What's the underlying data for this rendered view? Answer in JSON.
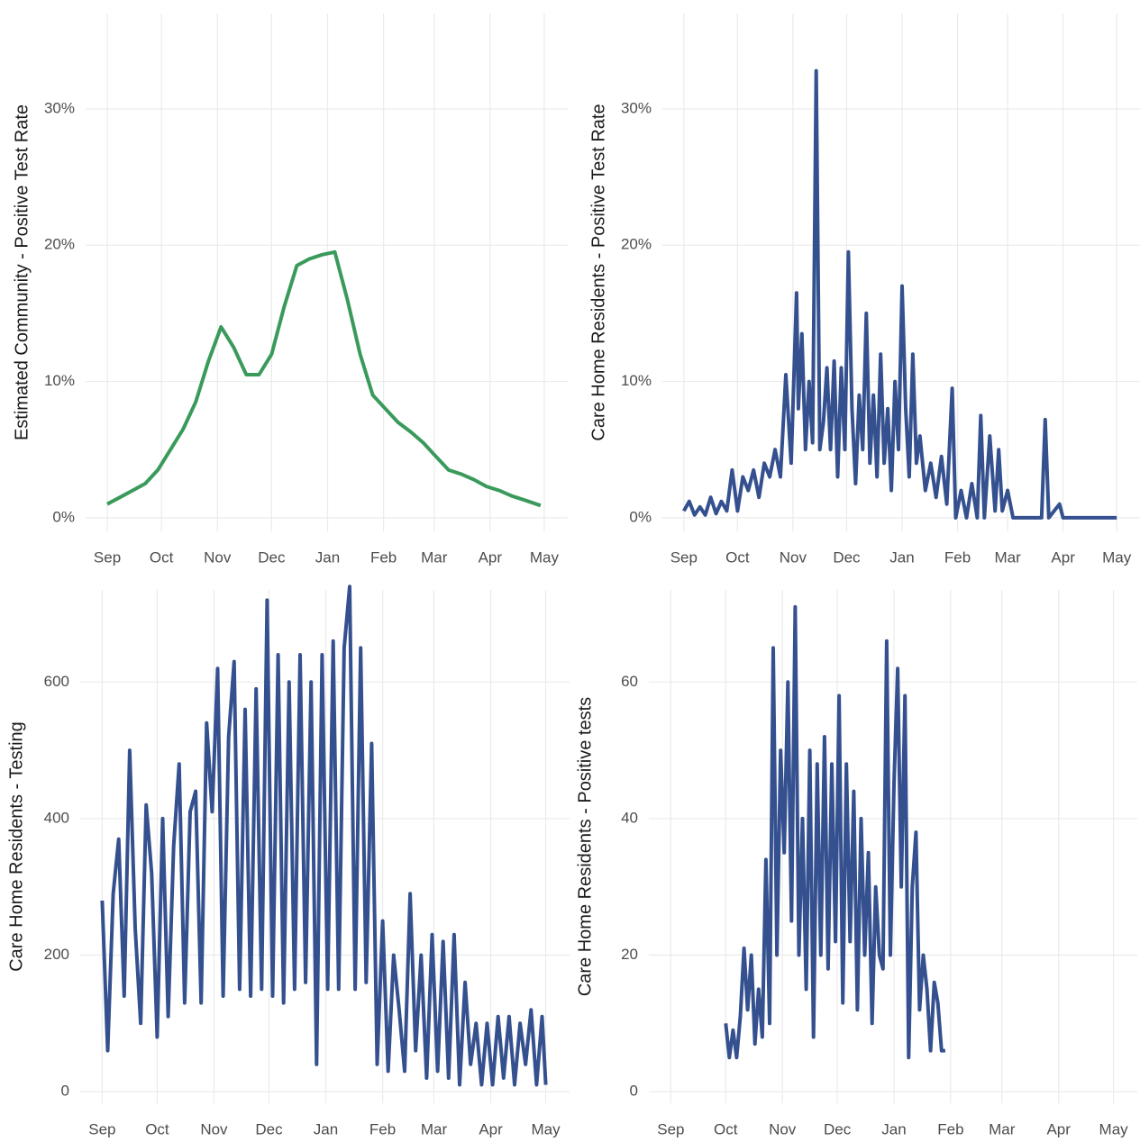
{
  "chart_data": [
    {
      "type": "line",
      "ylabel": "Estimated Community - Positive Test Rate",
      "color": "#3a9a5b",
      "x": [
        0,
        7,
        14,
        21,
        28,
        35,
        42,
        49,
        56,
        63,
        70,
        77,
        84,
        91,
        98,
        105,
        112,
        119,
        126,
        133,
        140,
        147,
        154,
        161,
        168,
        175,
        182,
        189,
        196,
        203,
        210,
        217,
        224,
        231,
        240
      ],
      "values": [
        1,
        1.5,
        2,
        2.5,
        3.5,
        5,
        6.5,
        8.5,
        11.5,
        14,
        12.5,
        10.5,
        10.5,
        12,
        15.5,
        18.5,
        19,
        19.3,
        19.5,
        16,
        12,
        9,
        8,
        7,
        6.3,
        5.5,
        4.5,
        3.5,
        3.2,
        2.8,
        2.3,
        2,
        1.6,
        1.3,
        0.9
      ],
      "xlim": [
        -12,
        255
      ],
      "xticks": [
        {
          "value": 0,
          "label": "Sep"
        },
        {
          "value": 30,
          "label": "Oct"
        },
        {
          "value": 61,
          "label": "Nov"
        },
        {
          "value": 91,
          "label": "Dec"
        },
        {
          "value": 122,
          "label": "Jan"
        },
        {
          "value": 153,
          "label": "Feb"
        },
        {
          "value": 181,
          "label": "Mar"
        },
        {
          "value": 212,
          "label": "Apr"
        },
        {
          "value": 242,
          "label": "May"
        }
      ],
      "ylim": [
        -1,
        37
      ],
      "yticks": [
        {
          "value": 0,
          "label": "0%"
        },
        {
          "value": 10,
          "label": "10%"
        },
        {
          "value": 20,
          "label": "20%"
        },
        {
          "value": 30,
          "label": "30%"
        }
      ],
      "grid": true
    },
    {
      "type": "line",
      "ylabel": "Care Home Residents - Positive Test Rate",
      "color": "#34508f",
      "x": [
        0,
        3,
        6,
        9,
        12,
        15,
        18,
        21,
        24,
        27,
        30,
        33,
        36,
        39,
        42,
        45,
        48,
        51,
        54,
        57,
        60,
        63,
        64,
        66,
        68,
        70,
        72,
        74,
        76,
        78,
        80,
        82,
        84,
        86,
        88,
        90,
        92,
        94,
        96,
        98,
        100,
        102,
        104,
        106,
        108,
        110,
        112,
        114,
        116,
        118,
        120,
        122,
        124,
        126,
        128,
        130,
        132,
        135,
        138,
        141,
        144,
        147,
        150,
        152,
        155,
        158,
        161,
        164,
        166,
        168,
        171,
        174,
        176,
        178,
        181,
        184,
        190,
        200,
        202,
        204,
        210,
        212,
        220,
        242
      ],
      "values": [
        0.5,
        1.2,
        0.2,
        0.8,
        0.2,
        1.5,
        0.3,
        1.2,
        0.5,
        3.5,
        0.5,
        3,
        2,
        3.5,
        1.5,
        4,
        3,
        5,
        3,
        10.5,
        4,
        16.5,
        8,
        13.5,
        5,
        10,
        5.5,
        32.8,
        5,
        7,
        11,
        5,
        11.5,
        3,
        11,
        5,
        19.5,
        8,
        2.5,
        9,
        5,
        15,
        4,
        9,
        3,
        12,
        4,
        8,
        2,
        10,
        5,
        17,
        8,
        3,
        12,
        4,
        6,
        2,
        4,
        1.5,
        4.5,
        1,
        9.5,
        0,
        2,
        0,
        2.5,
        0,
        7.5,
        0,
        6,
        0.5,
        5,
        0.5,
        2,
        0,
        0,
        0,
        7.2,
        0,
        1,
        0,
        0,
        0
      ],
      "xlim": [
        -12,
        255
      ],
      "xticks": [
        {
          "value": 0,
          "label": "Sep"
        },
        {
          "value": 30,
          "label": "Oct"
        },
        {
          "value": 61,
          "label": "Nov"
        },
        {
          "value": 91,
          "label": "Dec"
        },
        {
          "value": 122,
          "label": "Jan"
        },
        {
          "value": 153,
          "label": "Feb"
        },
        {
          "value": 181,
          "label": "Mar"
        },
        {
          "value": 212,
          "label": "Apr"
        },
        {
          "value": 242,
          "label": "May"
        }
      ],
      "ylim": [
        -1,
        37
      ],
      "yticks": [
        {
          "value": 0,
          "label": "0%"
        },
        {
          "value": 10,
          "label": "10%"
        },
        {
          "value": 20,
          "label": "20%"
        },
        {
          "value": 30,
          "label": "30%"
        }
      ],
      "grid": true
    },
    {
      "type": "line",
      "ylabel": "Care Home Residents - Testing",
      "color": "#34508f",
      "x": [
        0,
        3,
        6,
        9,
        12,
        15,
        18,
        21,
        24,
        27,
        30,
        33,
        36,
        39,
        42,
        45,
        48,
        51,
        54,
        57,
        60,
        63,
        66,
        69,
        72,
        75,
        78,
        81,
        84,
        87,
        90,
        93,
        96,
        99,
        102,
        105,
        108,
        111,
        114,
        117,
        120,
        123,
        126,
        129,
        132,
        135,
        138,
        141,
        144,
        147,
        150,
        153,
        156,
        159,
        162,
        165,
        168,
        171,
        174,
        177,
        180,
        183,
        186,
        189,
        192,
        195,
        198,
        201,
        204,
        207,
        210,
        213,
        216,
        219,
        222,
        225,
        228,
        231,
        234,
        237,
        240,
        242
      ],
      "values": [
        280,
        60,
        290,
        370,
        140,
        500,
        240,
        100,
        420,
        320,
        80,
        400,
        110,
        360,
        480,
        130,
        410,
        440,
        130,
        540,
        410,
        620,
        140,
        520,
        630,
        150,
        560,
        140,
        590,
        150,
        720,
        140,
        640,
        130,
        600,
        150,
        640,
        160,
        600,
        40,
        640,
        150,
        660,
        150,
        650,
        740,
        150,
        650,
        160,
        510,
        40,
        250,
        30,
        200,
        120,
        30,
        290,
        60,
        200,
        20,
        230,
        30,
        220,
        20,
        230,
        10,
        160,
        40,
        100,
        10,
        100,
        10,
        110,
        20,
        110,
        10,
        100,
        40,
        120,
        10,
        110,
        10
      ],
      "xlim": [
        -12,
        255
      ],
      "xticks": [
        {
          "value": 0,
          "label": "Sep"
        },
        {
          "value": 30,
          "label": "Oct"
        },
        {
          "value": 61,
          "label": "Nov"
        },
        {
          "value": 91,
          "label": "Dec"
        },
        {
          "value": 122,
          "label": "Jan"
        },
        {
          "value": 153,
          "label": "Feb"
        },
        {
          "value": 181,
          "label": "Mar"
        },
        {
          "value": 212,
          "label": "Apr"
        },
        {
          "value": 242,
          "label": "May"
        }
      ],
      "ylim": [
        -17,
        735
      ],
      "yticks": [
        0,
        200,
        400,
        600
      ],
      "grid": true
    },
    {
      "type": "line",
      "ylabel": "Care Home Residents - Positive tests",
      "color": "#34508f",
      "x": [
        30,
        32,
        34,
        36,
        38,
        40,
        42,
        44,
        46,
        48,
        50,
        52,
        54,
        56,
        58,
        60,
        62,
        64,
        66,
        68,
        70,
        72,
        74,
        76,
        78,
        80,
        82,
        84,
        86,
        88,
        90,
        92,
        94,
        96,
        98,
        100,
        102,
        104,
        106,
        108,
        110,
        112,
        114,
        116,
        118,
        120,
        122,
        124,
        126,
        128,
        130,
        132,
        134,
        136,
        138,
        140,
        142,
        144,
        146,
        148,
        150
      ],
      "values": [
        10,
        5,
        9,
        5,
        11,
        21,
        12,
        20,
        7,
        15,
        8,
        34,
        10,
        65,
        20,
        50,
        35,
        60,
        25,
        71,
        20,
        40,
        15,
        50,
        8,
        48,
        20,
        52,
        18,
        48,
        22,
        58,
        13,
        48,
        22,
        44,
        12,
        40,
        20,
        35,
        10,
        30,
        20,
        18,
        66,
        20,
        45,
        62,
        30,
        58,
        5,
        30,
        38,
        12,
        20,
        15,
        6,
        16,
        13,
        6,
        6
      ],
      "xlim": [
        -12,
        255
      ],
      "xticks": [
        {
          "value": 0,
          "label": "Sep"
        },
        {
          "value": 30,
          "label": "Oct"
        },
        {
          "value": 61,
          "label": "Nov"
        },
        {
          "value": 91,
          "label": "Dec"
        },
        {
          "value": 122,
          "label": "Jan"
        },
        {
          "value": 153,
          "label": "Feb"
        },
        {
          "value": 181,
          "label": "Mar"
        },
        {
          "value": 212,
          "label": "Apr"
        },
        {
          "value": 242,
          "label": "May"
        }
      ],
      "ylim": [
        -1.7,
        73.5
      ],
      "yticks": [
        0,
        20,
        40,
        60
      ],
      "grid": true
    }
  ]
}
